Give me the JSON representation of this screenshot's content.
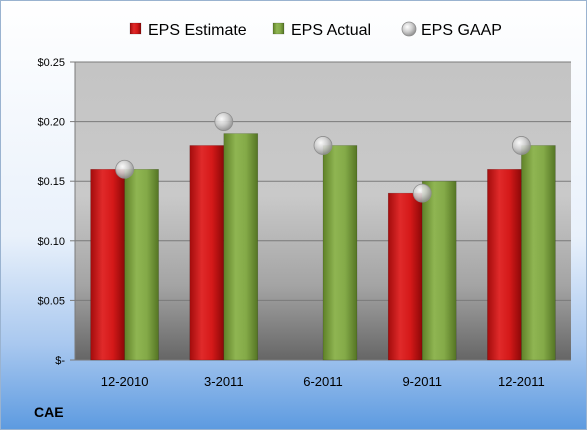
{
  "chart_data": {
    "type": "bar",
    "ticker": "CAE",
    "categories": [
      "12-2010",
      "3-2011",
      "6-2011",
      "9-2011",
      "12-2011"
    ],
    "series": [
      {
        "name": "EPS Estimate",
        "kind": "bar",
        "color": "#cc1111",
        "values": [
          0.16,
          0.18,
          null,
          0.14,
          0.16
        ]
      },
      {
        "name": "EPS Actual",
        "kind": "bar",
        "color": "#7fa640",
        "values": [
          0.16,
          0.19,
          0.18,
          0.15,
          0.18
        ]
      },
      {
        "name": "EPS GAAP",
        "kind": "marker",
        "color": "#b8b8b8",
        "values": [
          0.16,
          0.2,
          0.18,
          0.14,
          0.18
        ]
      }
    ],
    "y_ticks": [
      {
        "value": 0,
        "label": "$-"
      },
      {
        "value": 0.05,
        "label": "$0.05"
      },
      {
        "value": 0.1,
        "label": "$0.10"
      },
      {
        "value": 0.15,
        "label": "$0.15"
      },
      {
        "value": 0.2,
        "label": "$0.20"
      },
      {
        "value": 0.25,
        "label": "$0.25"
      }
    ],
    "ylim": [
      0,
      0.25
    ],
    "grid": true,
    "legend_position": "top"
  }
}
